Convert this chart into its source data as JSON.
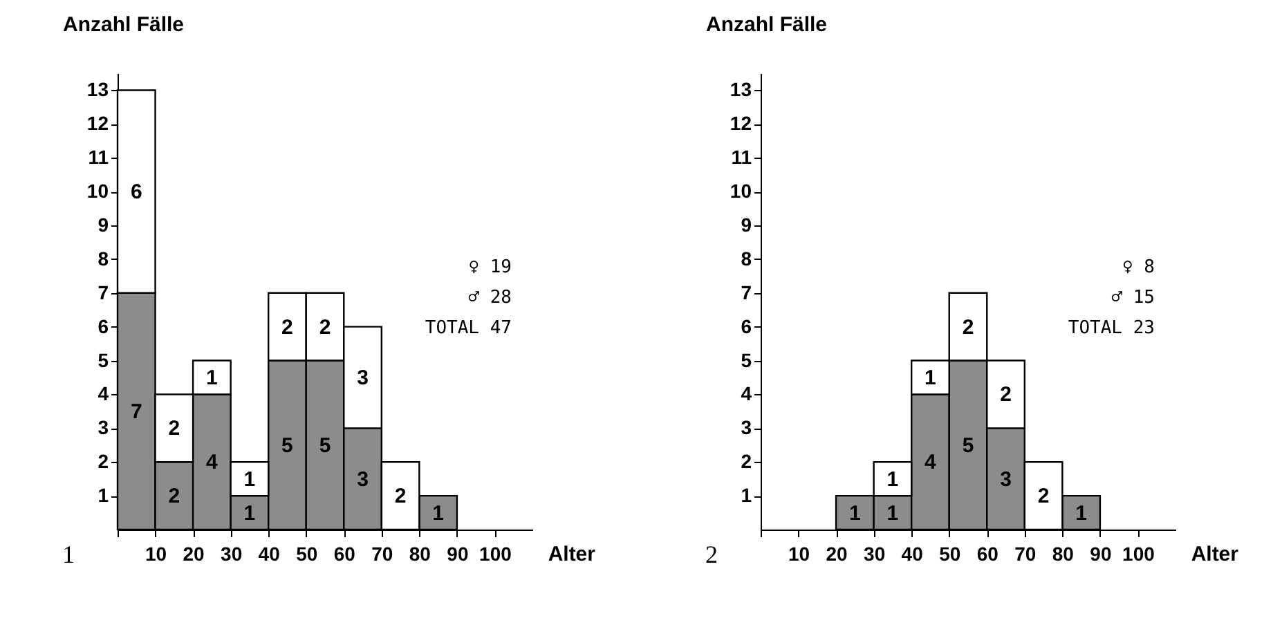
{
  "chart_data": [
    {
      "type": "bar",
      "stacked": true,
      "xlabel": "Alter",
      "ylabel": "Anzahl Fälle",
      "x": [
        5,
        15,
        25,
        35,
        45,
        55,
        65,
        75,
        85
      ],
      "series": [
        {
          "color": "#8c8c8c",
          "values": [
            7,
            2,
            4,
            1,
            5,
            5,
            3,
            0,
            1
          ],
          "value_labels": [
            "7",
            "2",
            "4",
            "1",
            "5",
            "5",
            "3",
            null,
            "1"
          ]
        },
        {
          "color": "#ffffff",
          "values": [
            6,
            2,
            1,
            1,
            2,
            2,
            3,
            2,
            0
          ],
          "value_labels": [
            "6",
            "2",
            "1",
            "1",
            "2",
            "2",
            "3",
            "2",
            null
          ]
        }
      ],
      "xlim": [
        0,
        110
      ],
      "xticks": [
        {
          "value": 0,
          "label": null
        },
        10,
        20,
        30,
        40,
        50,
        60,
        70,
        80,
        90,
        100
      ],
      "ylim": [
        0,
        13.5
      ],
      "yticks": [
        1,
        2,
        3,
        4,
        5,
        6,
        7,
        8,
        9,
        10,
        11,
        12,
        13
      ],
      "annotations": [
        "♀ 19",
        "♂ 28",
        "TOTAL 47",
        "1"
      ]
    },
    {
      "type": "bar",
      "stacked": true,
      "xlabel": "Alter",
      "ylabel": "Anzahl Fälle",
      "x": [
        5,
        15,
        25,
        35,
        45,
        55,
        65,
        75,
        85
      ],
      "series": [
        {
          "color": "#8c8c8c",
          "values": [
            0,
            0,
            1,
            1,
            4,
            5,
            3,
            0,
            1
          ],
          "value_labels": [
            null,
            null,
            "1",
            "1",
            "4",
            "5",
            "3",
            null,
            "1"
          ]
        },
        {
          "color": "#ffffff",
          "values": [
            0,
            0,
            0,
            1,
            1,
            2,
            2,
            2,
            0
          ],
          "value_labels": [
            null,
            null,
            null,
            "1",
            "1",
            "2",
            "2",
            "2",
            null
          ]
        }
      ],
      "xlim": [
        0,
        110
      ],
      "xticks": [
        {
          "value": 0,
          "label": null
        },
        10,
        20,
        30,
        40,
        50,
        60,
        70,
        80,
        90,
        100
      ],
      "ylim": [
        0,
        13.5
      ],
      "yticks": [
        1,
        2,
        3,
        4,
        5,
        6,
        7,
        8,
        9,
        10,
        11,
        12,
        13
      ],
      "annotations": [
        "♀ 8",
        "♂ 15",
        "TOTAL 23",
        "2"
      ]
    }
  ]
}
